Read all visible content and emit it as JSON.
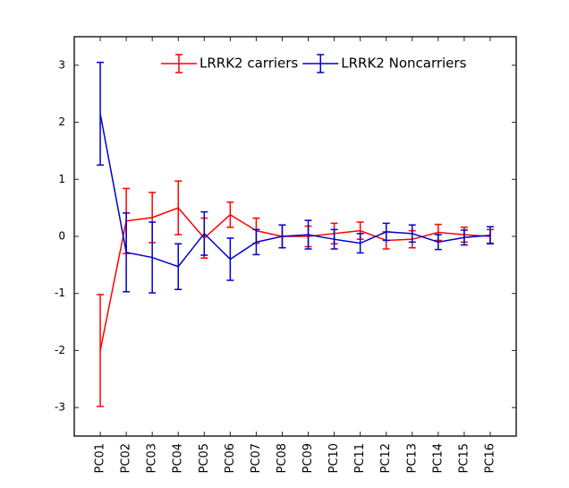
{
  "chart_data": {
    "type": "errorbar-line",
    "categories": [
      "PC01",
      "PC02",
      "PC03",
      "PC04",
      "PC05",
      "PC06",
      "PC07",
      "PC08",
      "PC09",
      "PC10",
      "PC11",
      "PC12",
      "PC13",
      "PC14",
      "PC15",
      "PC16"
    ],
    "series": [
      {
        "name": "LRRK2 carriers",
        "color": "#ff0000",
        "values": [
          -2.0,
          0.27,
          0.33,
          0.5,
          -0.03,
          0.38,
          0.1,
          0.0,
          0.0,
          0.05,
          0.1,
          -0.07,
          -0.05,
          0.07,
          0.03,
          0.0
        ],
        "errors": [
          0.98,
          0.57,
          0.44,
          0.47,
          0.35,
          0.22,
          0.22,
          0.2,
          0.18,
          0.18,
          0.15,
          0.15,
          0.15,
          0.14,
          0.13,
          0.12
        ]
      },
      {
        "name": "LRRK2 Noncarriers",
        "color": "#0000cc",
        "values": [
          2.15,
          -0.28,
          -0.37,
          -0.53,
          0.05,
          -0.4,
          -0.1,
          0.0,
          0.03,
          -0.05,
          -0.12,
          0.08,
          0.05,
          -0.1,
          -0.02,
          0.02
        ],
        "errors": [
          0.9,
          0.69,
          0.62,
          0.4,
          0.38,
          0.37,
          0.22,
          0.2,
          0.25,
          0.17,
          0.17,
          0.15,
          0.15,
          0.13,
          0.13,
          0.15
        ]
      }
    ],
    "ylim": [
      -3.5,
      3.5
    ],
    "yticks": [
      -3,
      -2,
      -1,
      0,
      1,
      2,
      3
    ],
    "legend": "upper right"
  }
}
